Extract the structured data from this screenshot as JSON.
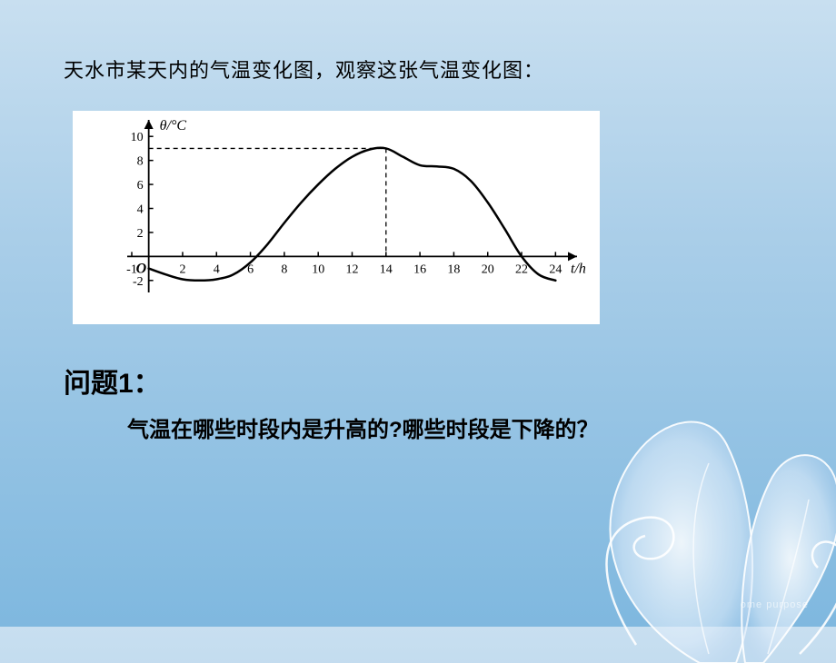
{
  "intro": "天水市某天内的气温变化图，观察这张气温变化图：",
  "question_label": "问题1：",
  "question_text": "气温在哪些时段内是升高的?哪些时段是下降的？",
  "bottom_text": "ome purpose",
  "chart": {
    "type": "line",
    "y_label": "θ/°C",
    "x_label": "t/h",
    "x_ticks": [
      -1,
      2,
      4,
      6,
      8,
      10,
      12,
      14,
      16,
      18,
      20,
      22,
      24
    ],
    "y_ticks": [
      -2,
      2,
      4,
      6,
      8,
      10
    ],
    "y_ticks_display": [
      "-2",
      "2",
      "4",
      "6",
      "8",
      "10"
    ],
    "xlim": [
      -1,
      25
    ],
    "ylim": [
      -3,
      11
    ],
    "peak_x": 14,
    "peak_y": 9,
    "origin_label": "O",
    "curve_points": [
      {
        "x": 0,
        "y": -1
      },
      {
        "x": 1,
        "y": -1.5
      },
      {
        "x": 2,
        "y": -1.9
      },
      {
        "x": 3,
        "y": -2
      },
      {
        "x": 4,
        "y": -1.9
      },
      {
        "x": 5,
        "y": -1.5
      },
      {
        "x": 6,
        "y": -0.5
      },
      {
        "x": 7,
        "y": 1
      },
      {
        "x": 8,
        "y": 2.8
      },
      {
        "x": 9,
        "y": 4.5
      },
      {
        "x": 10,
        "y": 6
      },
      {
        "x": 11,
        "y": 7.3
      },
      {
        "x": 12,
        "y": 8.3
      },
      {
        "x": 13,
        "y": 8.9
      },
      {
        "x": 14,
        "y": 9
      },
      {
        "x": 15,
        "y": 8.3
      },
      {
        "x": 16,
        "y": 7.6
      },
      {
        "x": 17,
        "y": 7.5
      },
      {
        "x": 18,
        "y": 7.3
      },
      {
        "x": 19,
        "y": 6.3
      },
      {
        "x": 20,
        "y": 4.5
      },
      {
        "x": 21,
        "y": 2.3
      },
      {
        "x": 22,
        "y": 0
      },
      {
        "x": 23,
        "y": -1.5
      },
      {
        "x": 24,
        "y": -2
      }
    ],
    "background_color": "#ffffff",
    "axis_color": "#000000",
    "curve_color": "#000000",
    "curve_width": 2.5,
    "dash_color": "#000000",
    "tick_fontsize": 14,
    "label_fontsize": 16
  }
}
